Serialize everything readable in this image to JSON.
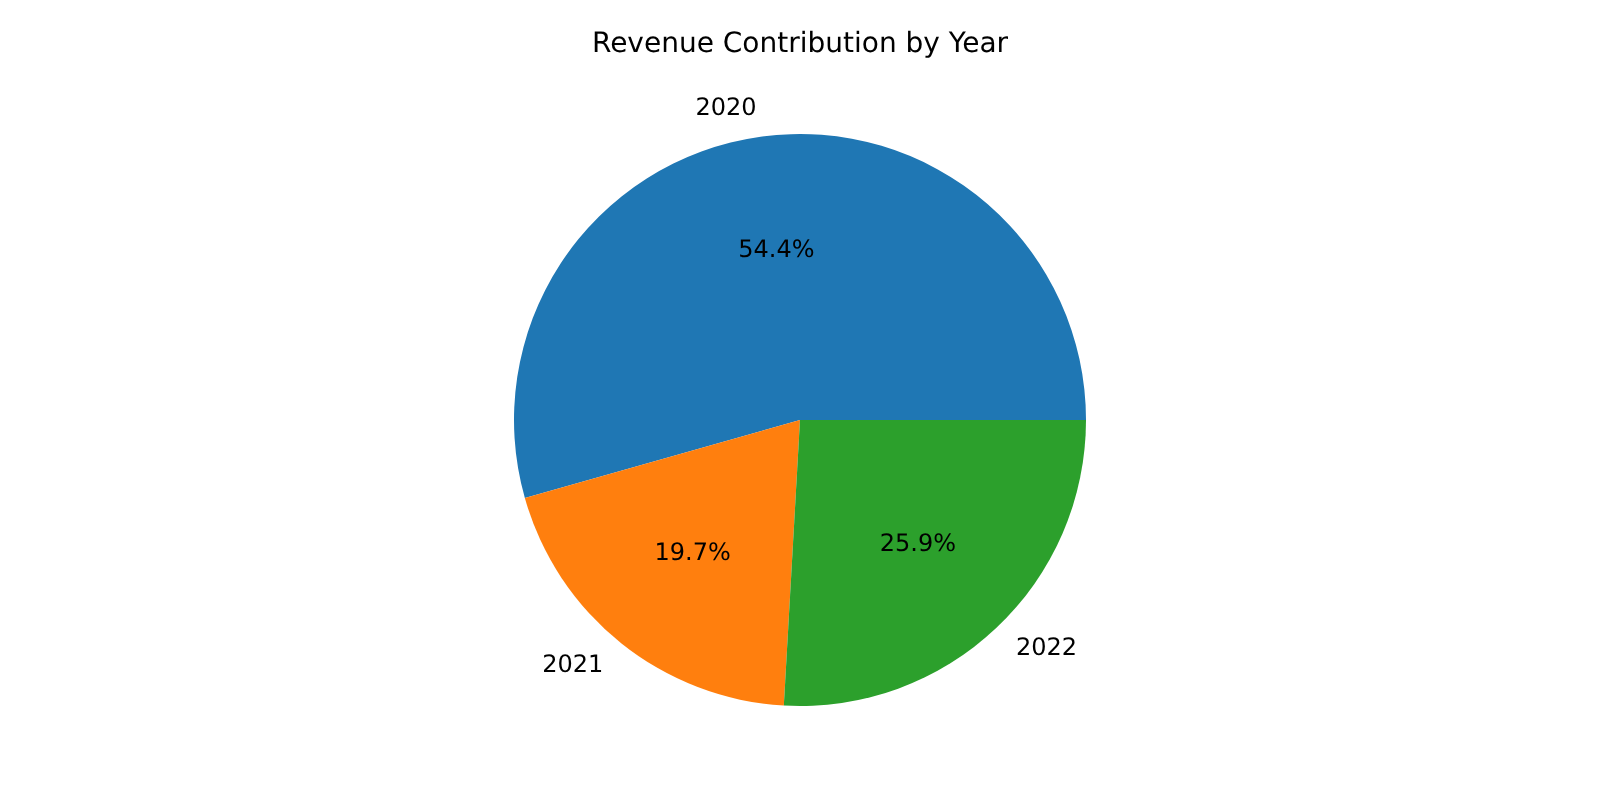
{
  "chart_data": {
    "type": "pie",
    "title": "Revenue Contribution by Year",
    "categories": [
      "2020",
      "2021",
      "2022"
    ],
    "values": [
      54.4,
      19.7,
      25.9
    ],
    "colors": [
      "#1f77b4",
      "#ff7f0e",
      "#2ca02c"
    ],
    "value_labels": [
      "54.4%",
      "19.7%",
      "25.9%"
    ]
  }
}
